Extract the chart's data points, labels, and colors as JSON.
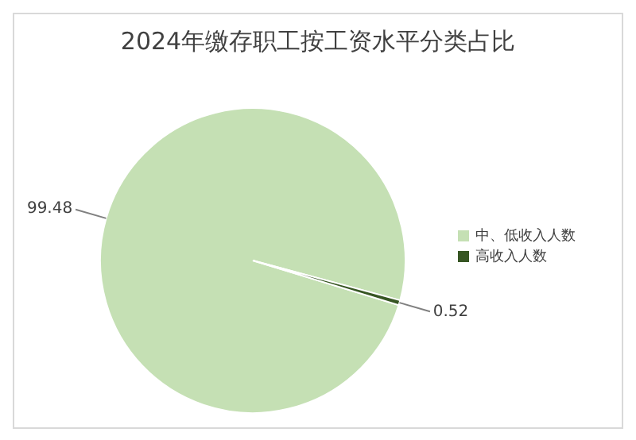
{
  "chart_data": {
    "type": "pie",
    "title": "2024年缴存职工按工资水平分类占比",
    "categories": [
      "中、低收入人数",
      "高收入人数"
    ],
    "values": [
      99.48,
      0.52
    ],
    "colors": [
      "#c5e0b4",
      "#375623"
    ],
    "data_labels": true,
    "legend": "right"
  }
}
